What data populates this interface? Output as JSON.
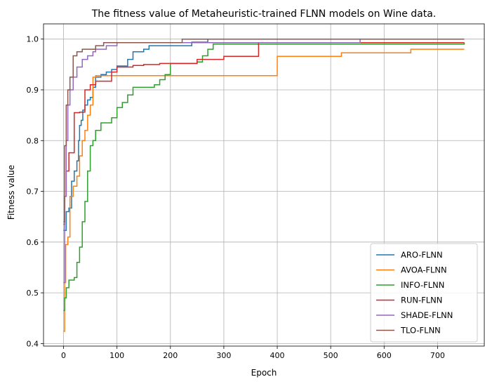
{
  "chart_data": {
    "type": "line",
    "step": true,
    "title": "The fitness value of Metaheuristic-trained FLNN models on Wine data.",
    "xlabel": "Epoch",
    "ylabel": "Fitness value",
    "xlim": [
      -37.5,
      787.5
    ],
    "ylim": [
      0.395,
      1.03
    ],
    "xticks": [
      0,
      100,
      200,
      300,
      400,
      500,
      600,
      700
    ],
    "yticks": [
      0.4,
      0.5,
      0.6,
      0.7,
      0.8,
      0.9,
      1.0
    ],
    "ytick_labels": [
      "0.4",
      "0.5",
      "0.6",
      "0.7",
      "0.8",
      "0.9",
      "1.0"
    ],
    "grid": true,
    "legend_position": "lower-right",
    "series": [
      {
        "name": "ARO-FLNN",
        "color": "#1f77b4",
        "x": [
          0,
          2,
          5,
          10,
          15,
          20,
          25,
          28,
          30,
          33,
          36,
          40,
          45,
          50,
          55,
          60,
          70,
          80,
          90,
          100,
          110,
          120,
          130,
          140,
          150,
          160,
          180,
          200,
          240,
          270,
          750
        ],
        "y": [
          0.623,
          0.623,
          0.66,
          0.667,
          0.72,
          0.74,
          0.76,
          0.8,
          0.83,
          0.84,
          0.86,
          0.87,
          0.88,
          0.885,
          0.905,
          0.925,
          0.93,
          0.935,
          0.94,
          0.947,
          0.947,
          0.96,
          0.975,
          0.975,
          0.98,
          0.987,
          0.987,
          0.987,
          0.994,
          1.0,
          1.0
        ]
      },
      {
        "name": "AVOA-FLNN",
        "color": "#ff7f0e",
        "x": [
          0,
          2,
          4,
          8,
          12,
          18,
          25,
          30,
          35,
          40,
          45,
          50,
          55,
          60,
          100,
          300,
          395,
          400,
          450,
          520,
          650,
          750
        ],
        "y": [
          0.424,
          0.52,
          0.595,
          0.61,
          0.69,
          0.71,
          0.73,
          0.77,
          0.8,
          0.82,
          0.85,
          0.87,
          0.925,
          0.928,
          0.928,
          0.928,
          0.928,
          0.966,
          0.966,
          0.973,
          0.98,
          0.98
        ]
      },
      {
        "name": "INFO-FLNN",
        "color": "#2ca02c",
        "x": [
          0,
          2,
          5,
          10,
          20,
          25,
          30,
          35,
          40,
          45,
          50,
          55,
          60,
          70,
          80,
          90,
          100,
          110,
          120,
          130,
          150,
          170,
          180,
          190,
          200,
          230,
          250,
          260,
          270,
          280,
          750
        ],
        "y": [
          0.465,
          0.49,
          0.51,
          0.525,
          0.53,
          0.56,
          0.59,
          0.64,
          0.68,
          0.74,
          0.79,
          0.8,
          0.82,
          0.835,
          0.835,
          0.845,
          0.865,
          0.875,
          0.89,
          0.905,
          0.905,
          0.91,
          0.92,
          0.93,
          0.952,
          0.952,
          0.955,
          0.967,
          0.98,
          0.99,
          0.993
        ]
      },
      {
        "name": "RUN-FLNN",
        "color": "#d62728",
        "x": [
          0,
          2,
          5,
          10,
          20,
          30,
          40,
          50,
          60,
          90,
          100,
          130,
          150,
          180,
          200,
          250,
          300,
          365,
          750
        ],
        "y": [
          0.635,
          0.69,
          0.74,
          0.776,
          0.855,
          0.856,
          0.9,
          0.91,
          0.917,
          0.935,
          0.945,
          0.948,
          0.95,
          0.952,
          0.952,
          0.96,
          0.966,
          0.993,
          0.993
        ]
      },
      {
        "name": "SHADE-FLNN",
        "color": "#9467bd",
        "x": [
          0,
          2,
          5,
          8,
          12,
          18,
          25,
          35,
          45,
          55,
          60,
          70,
          80,
          100,
          150,
          200,
          555,
          750
        ],
        "y": [
          0.52,
          0.69,
          0.8,
          0.87,
          0.9,
          0.925,
          0.945,
          0.96,
          0.967,
          0.975,
          0.98,
          0.98,
          0.987,
          0.993,
          0.993,
          0.993,
          1.0,
          1.0
        ]
      },
      {
        "name": "TLO-FLNN",
        "color": "#8c564b",
        "x": [
          0,
          2,
          5,
          8,
          12,
          18,
          25,
          35,
          45,
          60,
          75,
          100,
          150,
          222,
          750
        ],
        "y": [
          0.64,
          0.79,
          0.87,
          0.9,
          0.925,
          0.967,
          0.975,
          0.98,
          0.98,
          0.987,
          0.993,
          0.993,
          0.993,
          1.0,
          1.0
        ]
      }
    ]
  }
}
